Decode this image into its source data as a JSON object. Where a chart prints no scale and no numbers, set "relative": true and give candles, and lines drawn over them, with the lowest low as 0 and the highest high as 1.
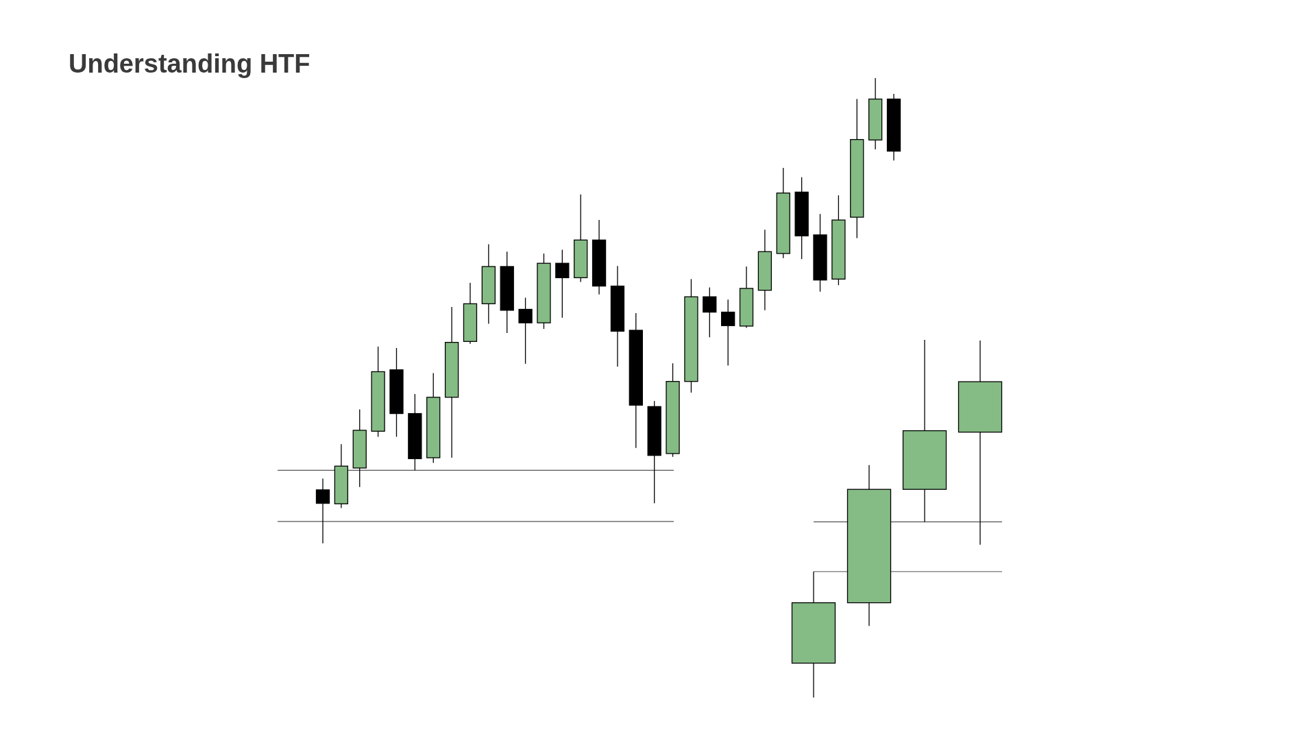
{
  "chart_data": [
    {
      "type": "candlestick",
      "title": "Understanding HTF",
      "relative": true,
      "categories": [
        null,
        null,
        null,
        null,
        null,
        null,
        null,
        null,
        null,
        null,
        null,
        null,
        null,
        null,
        null,
        null,
        null,
        null,
        null,
        null,
        null,
        null,
        null,
        null,
        null,
        null,
        null,
        null,
        null,
        null,
        null,
        null
      ],
      "ohlc": [
        [
          0.115,
          0.139,
          0,
          0.086
        ],
        [
          0.085,
          0.213,
          0.076,
          0.166
        ],
        [
          0.162,
          0.288,
          0.121,
          0.243
        ],
        [
          0.241,
          0.423,
          0.229,
          0.369
        ],
        [
          0.373,
          0.42,
          0.229,
          0.279
        ],
        [
          0.279,
          0.321,
          0.157,
          0.182
        ],
        [
          0.184,
          0.366,
          0.173,
          0.314
        ],
        [
          0.314,
          0.508,
          0.184,
          0.432
        ],
        [
          0.434,
          0.56,
          0.429,
          0.515
        ],
        [
          0.515,
          0.643,
          0.472,
          0.595
        ],
        [
          0.595,
          0.627,
          0.452,
          0.501
        ],
        [
          0.503,
          0.528,
          0.386,
          0.474
        ],
        [
          0.474,
          0.623,
          0.461,
          0.602
        ],
        [
          0.602,
          0.631,
          0.485,
          0.571
        ],
        [
          0.571,
          0.75,
          0.562,
          0.652
        ],
        [
          0.652,
          0.695,
          0.535,
          0.553
        ],
        [
          0.553,
          0.596,
          0.38,
          0.456
        ],
        [
          0.458,
          0.495,
          0.205,
          0.297
        ],
        [
          0.294,
          0.306,
          0.086,
          0.189
        ],
        [
          0.193,
          0.387,
          0.186,
          0.348
        ],
        [
          0.348,
          0.568,
          0.324,
          0.53
        ],
        [
          0.53,
          0.55,
          0.443,
          0.497
        ],
        [
          0.497,
          0.524,
          0.382,
          0.468
        ],
        [
          0.467,
          0.595,
          0.463,
          0.548
        ],
        [
          0.544,
          0.674,
          0.501,
          0.627
        ],
        [
          0.623,
          0.807,
          0.613,
          0.753
        ],
        [
          0.755,
          0.787,
          0.611,
          0.661
        ],
        [
          0.663,
          0.708,
          0.541,
          0.566
        ],
        [
          0.568,
          0.748,
          0.555,
          0.695
        ],
        [
          0.701,
          0.955,
          0.656,
          0.868
        ],
        [
          0.867,
          1,
          0.847,
          0.955
        ],
        [
          0.955,
          0.966,
          0.823,
          0.843
        ]
      ],
      "colors": [
        "#000000",
        "#85bb85",
        "#85bb85",
        "#85bb85",
        "#000000",
        "#000000",
        "#85bb85",
        "#85bb85",
        "#85bb85",
        "#85bb85",
        "#000000",
        "#000000",
        "#85bb85",
        "#000000",
        "#85bb85",
        "#000000",
        "#000000",
        "#000000",
        "#000000",
        "#85bb85",
        "#85bb85",
        "#000000",
        "#000000",
        "#85bb85",
        "#85bb85",
        "#85bb85",
        "#000000",
        "#000000",
        "#85bb85",
        "#85bb85",
        "#85bb85",
        "#000000"
      ],
      "ref_lines": [
        {
          "axis": "y",
          "value": 0.047,
          "color": "#555555"
        },
        {
          "axis": "y",
          "value": 0.157,
          "color": "#555555"
        }
      ]
    },
    {
      "type": "candlestick",
      "relative": true,
      "categories": [
        null,
        null,
        null,
        null
      ],
      "ohlc": [
        [
          0.096,
          0.352,
          0,
          0.265
        ],
        [
          0.265,
          0.65,
          0.2,
          0.582
        ],
        [
          0.582,
          1,
          0.491,
          0.746
        ],
        [
          0.742,
          0.998,
          0.427,
          0.883
        ]
      ],
      "colors": [
        "#85bb85",
        "#85bb85",
        "#85bb85",
        "#85bb85"
      ],
      "ref_lines": [
        {
          "axis": "y",
          "value": 0.352,
          "color": "#555555"
        },
        {
          "axis": "y",
          "value": 0.491,
          "color": "#555555"
        }
      ]
    }
  ]
}
